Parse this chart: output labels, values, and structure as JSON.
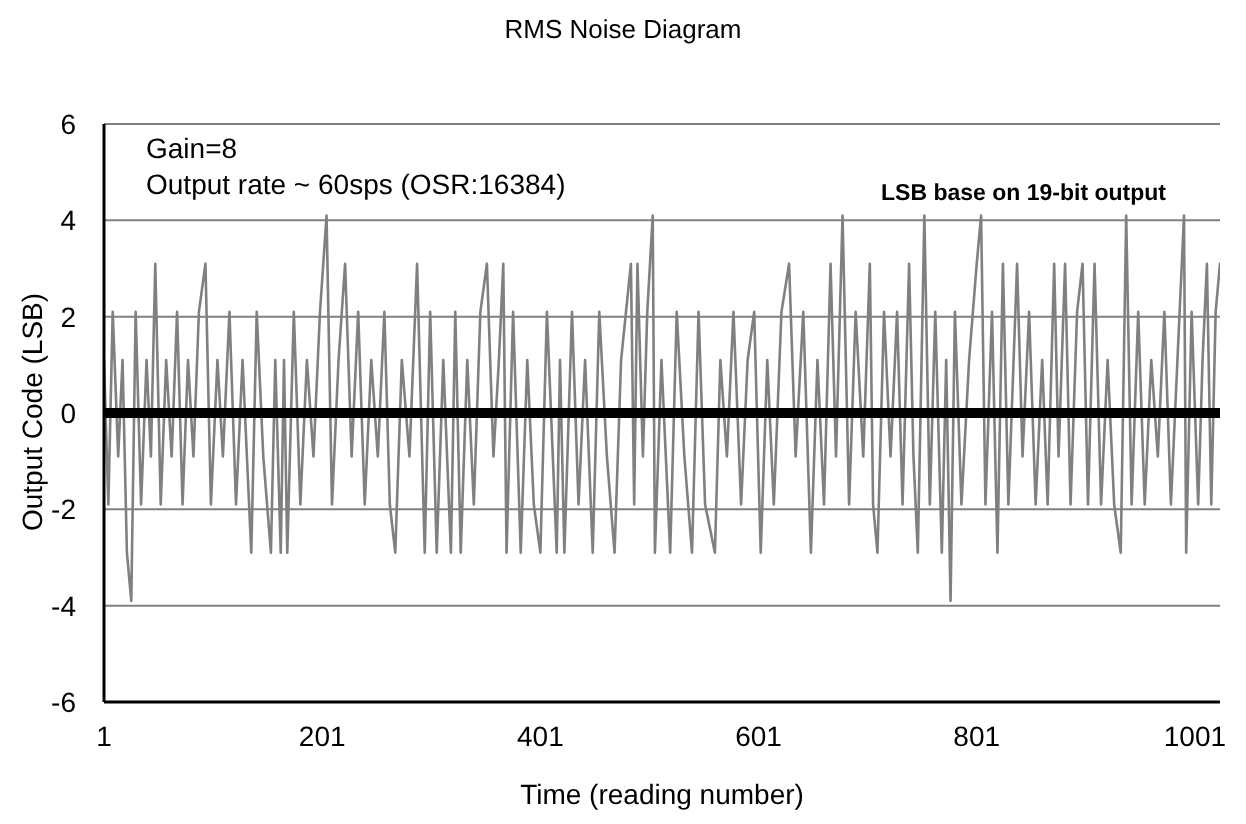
{
  "chart_data": {
    "type": "line",
    "title": "RMS Noise Diagram",
    "xlabel": "Time (reading number)",
    "ylabel": "Output Code (LSB)",
    "annotations": [
      "Gain=8",
      "Output rate ~ 60sps (OSR:16384)",
      "LSB base on 19-bit output"
    ],
    "x": [
      1,
      5,
      9,
      14,
      18,
      22,
      26,
      30,
      35,
      40,
      44,
      48,
      53,
      58,
      63,
      68,
      73,
      78,
      83,
      88,
      94,
      99,
      105,
      110,
      116,
      122,
      128,
      136,
      141,
      147,
      154,
      158,
      163,
      166,
      169,
      175,
      181,
      187,
      193,
      199,
      205,
      210,
      216,
      222,
      228,
      234,
      240,
      246,
      252,
      258,
      263,
      268,
      274,
      281,
      288,
      295,
      300,
      306,
      312,
      319,
      323,
      328,
      334,
      340,
      346,
      352,
      358,
      363,
      367,
      370,
      376,
      383,
      389,
      395,
      401,
      407,
      416,
      419,
      423,
      430,
      436,
      442,
      449,
      455,
      462,
      469,
      475,
      484,
      487,
      490,
      495,
      499,
      504,
      506,
      512,
      520,
      526,
      533,
      540,
      546,
      552,
      561,
      566,
      572,
      578,
      585,
      591,
      597,
      603,
      609,
      615,
      622,
      629,
      635,
      642,
      649,
      655,
      661,
      667,
      672,
      678,
      684,
      690,
      697,
      703,
      706,
      710,
      716,
      722,
      728,
      733,
      739,
      743,
      747,
      753,
      758,
      763,
      769,
      773,
      777,
      781,
      787,
      794,
      801,
      805,
      809,
      815,
      820,
      825,
      830,
      838,
      843,
      849,
      855,
      861,
      866,
      872,
      876,
      882,
      887,
      893,
      898,
      903,
      909,
      915,
      921,
      927,
      933,
      938,
      943,
      949,
      955,
      961,
      967,
      973,
      979,
      985,
      991,
      993,
      998,
      1004,
      1008,
      1012,
      1016,
      1020,
      1024
    ],
    "values": [
      1.1,
      -1.9,
      2.1,
      -0.9,
      1.1,
      -2.9,
      -3.9,
      2.1,
      -1.9,
      1.1,
      -0.9,
      3.1,
      -1.9,
      1.1,
      -0.9,
      2.1,
      -1.9,
      1.1,
      -0.9,
      2.1,
      3.1,
      -1.9,
      1.1,
      -0.9,
      2.1,
      -1.9,
      1.1,
      -2.9,
      2.1,
      -0.9,
      -2.9,
      1.1,
      -2.9,
      1.1,
      -2.9,
      2.1,
      -1.9,
      1.1,
      -0.9,
      2.1,
      4.1,
      -1.9,
      1.1,
      3.1,
      -0.9,
      2.1,
      -1.9,
      1.1,
      -0.9,
      2.1,
      -1.9,
      -2.9,
      1.1,
      -0.9,
      3.1,
      -2.9,
      2.1,
      -2.9,
      1.1,
      -2.9,
      2.1,
      -2.9,
      1.1,
      -1.9,
      2.1,
      3.1,
      -0.9,
      1.1,
      3.1,
      -2.9,
      2.1,
      -2.9,
      1.1,
      -1.9,
      -2.9,
      2.1,
      -2.9,
      1.1,
      -2.9,
      2.1,
      -1.9,
      1.1,
      -2.9,
      2.1,
      -0.9,
      -2.9,
      1.1,
      3.1,
      -1.9,
      3.1,
      -0.9,
      2.1,
      4.1,
      -2.9,
      1.1,
      -2.9,
      2.1,
      -0.9,
      -2.9,
      2.1,
      -1.9,
      -2.9,
      1.1,
      -0.9,
      2.1,
      -1.9,
      1.1,
      2.1,
      -2.9,
      1.1,
      -1.9,
      2.1,
      3.1,
      -0.9,
      2.1,
      -2.9,
      1.1,
      -1.9,
      3.1,
      -0.9,
      4.1,
      -1.9,
      2.1,
      -0.9,
      3.1,
      -1.9,
      -2.9,
      2.1,
      -0.9,
      2.1,
      -1.9,
      3.1,
      -0.9,
      -2.9,
      4.1,
      -1.9,
      2.1,
      -2.9,
      1.1,
      -3.9,
      2.1,
      -1.9,
      1.1,
      3.1,
      4.1,
      -1.9,
      2.1,
      -2.9,
      3.1,
      -1.9,
      3.1,
      -0.9,
      2.1,
      -1.9,
      1.1,
      -1.9,
      3.1,
      -0.9,
      3.1,
      -1.9,
      2.1,
      3.1,
      -1.9,
      3.1,
      -1.9,
      1.1,
      -1.9,
      -2.9,
      4.1,
      -1.9,
      2.1,
      -1.9,
      1.1,
      -0.9,
      2.1,
      -1.9,
      1.1,
      4.1,
      -2.9,
      2.1,
      -1.9,
      1.1,
      3.1,
      -1.9,
      2.1,
      3.1
    ],
    "color": "#808080",
    "marker": "none",
    "xlim": [
      1,
      1024
    ],
    "xticks": [
      1,
      201,
      401,
      601,
      801,
      1001
    ],
    "ylim": [
      -6,
      6
    ],
    "yticks": [
      -6,
      -4,
      -2,
      0,
      2,
      4,
      6
    ],
    "grid": "y",
    "ref_lines": [
      {
        "axis": "y",
        "value": 0,
        "color": "#000000"
      }
    ]
  }
}
